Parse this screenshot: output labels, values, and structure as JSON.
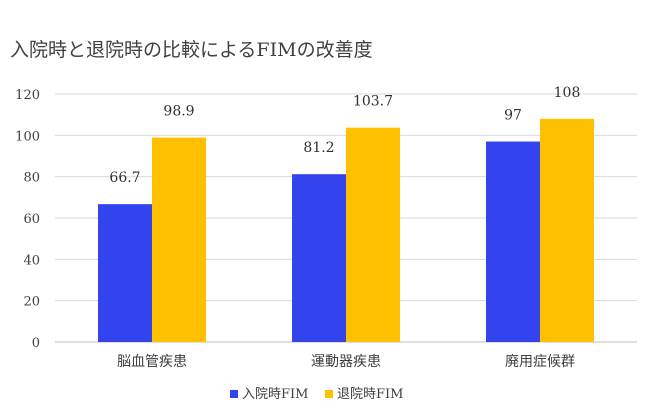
{
  "chart_data": {
    "type": "bar",
    "title": "入院時と退院時の比較によるFIMの改善度",
    "categories": [
      "脳血管疾患",
      "運動器疾患",
      "廃用症候群"
    ],
    "series": [
      {
        "name": "入院時FIM",
        "color": "#3344ee",
        "values": [
          66.7,
          81.2,
          97
        ],
        "labels": [
          "66.7",
          "81.2",
          "97"
        ]
      },
      {
        "name": "退院時FIM",
        "color": "#ffc000",
        "values": [
          98.9,
          103.7,
          108
        ],
        "labels": [
          "98.9",
          "103.7",
          "108"
        ]
      }
    ],
    "ylim": [
      0,
      120
    ],
    "yticks": [
      0,
      20,
      40,
      60,
      80,
      100,
      120
    ],
    "grid": true,
    "legend_position": "bottom-center"
  }
}
